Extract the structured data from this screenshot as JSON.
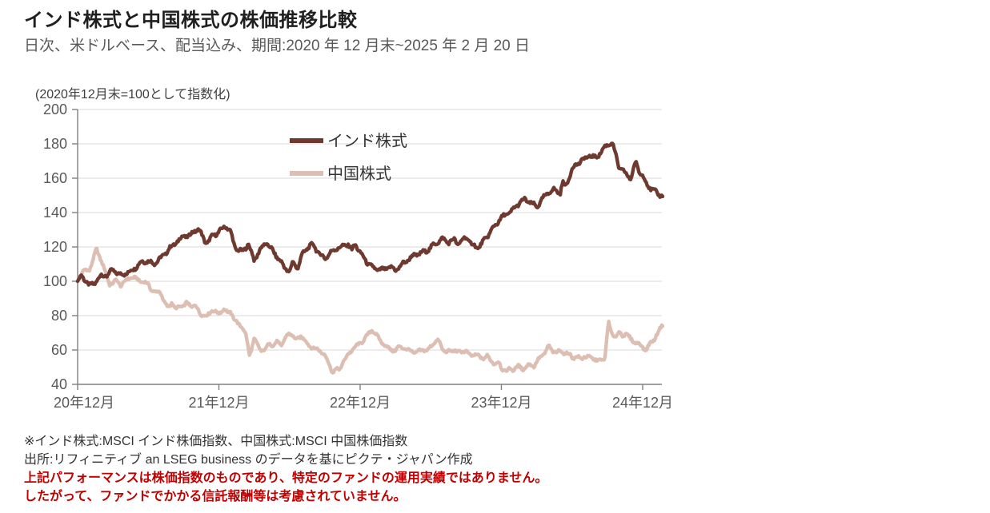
{
  "title": "インド株式と中国株式の株価推移比較",
  "subtitle": "日次、米ドルベース、配当込み、期間:2020 年 12 月末~2025 年 2 月 20 日",
  "chart_data": {
    "type": "line",
    "unit_label": "(2020年12月末=100として指数化)",
    "x_unit": "months_since_2020-12-31",
    "x_axis": {
      "tick_labels": [
        "20年12月",
        "21年12月",
        "22年12月",
        "23年12月",
        "24年12月"
      ],
      "tick_months": [
        0,
        12,
        24,
        36,
        48
      ],
      "range_months": [
        0,
        49.7
      ]
    },
    "y_axis": {
      "min": 40,
      "max": 200,
      "step": 20,
      "tick_labels": [
        "200",
        "180",
        "160",
        "140",
        "120",
        "100",
        "80",
        "60",
        "40"
      ]
    },
    "grid": true,
    "grid_color": "#d9d9d9",
    "axis_color": "#808080",
    "legend_position": "top-inside",
    "series": [
      {
        "name": "インド株式",
        "color": "#6E3A30",
        "points": [
          [
            0,
            100
          ],
          [
            0.3,
            103
          ],
          [
            1,
            97
          ],
          [
            1.5,
            100
          ],
          [
            2,
            104
          ],
          [
            2.5,
            103
          ],
          [
            3,
            106
          ],
          [
            3.5,
            104
          ],
          [
            4,
            105
          ],
          [
            4.5,
            106
          ],
          [
            5,
            108
          ],
          [
            5.5,
            111
          ],
          [
            6,
            112
          ],
          [
            6.5,
            111
          ],
          [
            7,
            113
          ],
          [
            7.5,
            116
          ],
          [
            8,
            120
          ],
          [
            8.5,
            124
          ],
          [
            9,
            127
          ],
          [
            9.5,
            126
          ],
          [
            10,
            129
          ],
          [
            10.3,
            130
          ],
          [
            10.8,
            124
          ],
          [
            11,
            123
          ],
          [
            11.5,
            127
          ],
          [
            12,
            128
          ],
          [
            12.6,
            132
          ],
          [
            13,
            129
          ],
          [
            13.4,
            120
          ],
          [
            14,
            117
          ],
          [
            14.5,
            121
          ],
          [
            15,
            112
          ],
          [
            15.5,
            119
          ],
          [
            16,
            123
          ],
          [
            16.5,
            118
          ],
          [
            17,
            113
          ],
          [
            17.5,
            109
          ],
          [
            18,
            106
          ],
          [
            18.3,
            112
          ],
          [
            18.7,
            107
          ],
          [
            19,
            114
          ],
          [
            19.5,
            119
          ],
          [
            20,
            122
          ],
          [
            20.5,
            117
          ],
          [
            21,
            113
          ],
          [
            21.5,
            116
          ],
          [
            22,
            119
          ],
          [
            22.5,
            121
          ],
          [
            23,
            122
          ],
          [
            23.3,
            118
          ],
          [
            23.6,
            121
          ],
          [
            24,
            116
          ],
          [
            24.5,
            112
          ],
          [
            25,
            109
          ],
          [
            25.5,
            107
          ],
          [
            26,
            106
          ],
          [
            26.5,
            108
          ],
          [
            27,
            107
          ],
          [
            27.5,
            110
          ],
          [
            28,
            112
          ],
          [
            28.5,
            114
          ],
          [
            29,
            116
          ],
          [
            29.5,
            118
          ],
          [
            30,
            120
          ],
          [
            30.5,
            122
          ],
          [
            31,
            124
          ],
          [
            31.5,
            123
          ],
          [
            32,
            125
          ],
          [
            32.3,
            122
          ],
          [
            33,
            125
          ],
          [
            33.5,
            121
          ],
          [
            34,
            120
          ],
          [
            34.5,
            124
          ],
          [
            35,
            128
          ],
          [
            35.5,
            132
          ],
          [
            36,
            137
          ],
          [
            36.5,
            140
          ],
          [
            37,
            142
          ],
          [
            37.5,
            145
          ],
          [
            38,
            147
          ],
          [
            38.5,
            146
          ],
          [
            39,
            144
          ],
          [
            39.5,
            148
          ],
          [
            40,
            151
          ],
          [
            40.5,
            153
          ],
          [
            41,
            152
          ],
          [
            41.2,
            158
          ],
          [
            41.5,
            156
          ],
          [
            42,
            165
          ],
          [
            42.5,
            168
          ],
          [
            43,
            171
          ],
          [
            43.5,
            174
          ],
          [
            44,
            172
          ],
          [
            44.5,
            175
          ],
          [
            45,
            179
          ],
          [
            45.4,
            181
          ],
          [
            45.8,
            172
          ],
          [
            46,
            167
          ],
          [
            46.5,
            163
          ],
          [
            47,
            159
          ],
          [
            47.4,
            169
          ],
          [
            47.8,
            163
          ],
          [
            48,
            162
          ],
          [
            48.3,
            158
          ],
          [
            48.7,
            154
          ],
          [
            49,
            152
          ],
          [
            49.4,
            150
          ],
          [
            49.7,
            149
          ]
        ]
      },
      {
        "name": "中国株式",
        "color": "#DCBEB2",
        "points": [
          [
            0,
            100
          ],
          [
            0.5,
            106
          ],
          [
            1,
            107
          ],
          [
            1.3,
            113
          ],
          [
            1.6,
            119
          ],
          [
            2,
            112
          ],
          [
            2.3,
            106
          ],
          [
            2.7,
            98
          ],
          [
            3,
            99
          ],
          [
            3.3,
            101
          ],
          [
            3.7,
            98
          ],
          [
            4,
            100
          ],
          [
            4.5,
            102
          ],
          [
            5,
            101
          ],
          [
            5.5,
            100
          ],
          [
            6,
            99
          ],
          [
            6.3,
            95
          ],
          [
            6.6,
            93
          ],
          [
            7,
            94
          ],
          [
            7.3,
            88
          ],
          [
            7.6,
            85
          ],
          [
            8,
            88
          ],
          [
            8.3,
            84
          ],
          [
            8.7,
            86
          ],
          [
            9,
            85
          ],
          [
            9.3,
            87
          ],
          [
            9.7,
            85
          ],
          [
            10,
            86
          ],
          [
            10.4,
            82
          ],
          [
            10.8,
            80
          ],
          [
            11,
            80
          ],
          [
            11.4,
            83
          ],
          [
            11.8,
            81
          ],
          [
            12,
            81
          ],
          [
            12.4,
            84
          ],
          [
            12.8,
            82
          ],
          [
            13,
            83
          ],
          [
            13.3,
            78
          ],
          [
            13.6,
            75
          ],
          [
            14,
            73
          ],
          [
            14.3,
            68
          ],
          [
            14.6,
            57
          ],
          [
            14.8,
            62
          ],
          [
            15,
            67
          ],
          [
            15.3,
            63
          ],
          [
            15.6,
            60
          ],
          [
            16,
            60
          ],
          [
            16.3,
            64
          ],
          [
            16.6,
            62
          ],
          [
            17,
            65
          ],
          [
            17.3,
            63
          ],
          [
            17.6,
            67
          ],
          [
            18,
            70
          ],
          [
            18.3,
            68
          ],
          [
            18.6,
            65
          ],
          [
            19,
            68
          ],
          [
            19.3,
            66
          ],
          [
            19.6,
            63
          ],
          [
            20,
            62
          ],
          [
            20.4,
            60
          ],
          [
            20.8,
            58
          ],
          [
            21,
            57
          ],
          [
            21.3,
            52
          ],
          [
            21.7,
            47
          ],
          [
            22,
            50
          ],
          [
            22.2,
            48
          ],
          [
            22.5,
            53
          ],
          [
            23,
            57
          ],
          [
            23.5,
            61
          ],
          [
            24,
            64
          ],
          [
            24.5,
            68
          ],
          [
            25,
            72
          ],
          [
            25.3,
            69
          ],
          [
            25.6,
            66
          ],
          [
            26,
            63
          ],
          [
            26.5,
            61
          ],
          [
            27,
            60
          ],
          [
            27.3,
            62
          ],
          [
            27.7,
            61
          ],
          [
            28,
            59
          ],
          [
            28.3,
            60
          ],
          [
            28.7,
            58
          ],
          [
            29,
            60
          ],
          [
            29.3,
            61
          ],
          [
            29.7,
            59
          ],
          [
            30,
            62
          ],
          [
            30.3,
            64
          ],
          [
            30.7,
            65
          ],
          [
            31,
            61
          ],
          [
            31.3,
            59
          ],
          [
            31.7,
            60
          ],
          [
            32,
            60
          ],
          [
            32.3,
            58
          ],
          [
            32.7,
            59
          ],
          [
            33,
            59
          ],
          [
            33.3,
            57
          ],
          [
            33.7,
            58
          ],
          [
            34,
            57
          ],
          [
            34.4,
            55
          ],
          [
            34.8,
            56
          ],
          [
            35,
            54
          ],
          [
            35.4,
            52
          ],
          [
            35.8,
            53
          ],
          [
            36,
            50
          ],
          [
            36.4,
            48
          ],
          [
            36.8,
            49
          ],
          [
            37,
            48
          ],
          [
            37.4,
            50
          ],
          [
            37.8,
            49
          ],
          [
            38,
            50
          ],
          [
            38.4,
            52
          ],
          [
            38.8,
            51
          ],
          [
            39,
            53
          ],
          [
            39.4,
            56
          ],
          [
            39.7,
            58
          ],
          [
            40,
            62
          ],
          [
            40.3,
            60
          ],
          [
            40.7,
            59
          ],
          [
            41,
            60
          ],
          [
            41.4,
            58
          ],
          [
            41.8,
            57
          ],
          [
            42,
            55
          ],
          [
            42.4,
            56
          ],
          [
            42.8,
            55
          ],
          [
            43,
            57
          ],
          [
            43.4,
            56
          ],
          [
            43.8,
            55
          ],
          [
            44,
            54
          ],
          [
            44.3,
            53
          ],
          [
            44.6,
            54
          ],
          [
            44.8,
            56
          ],
          [
            45,
            70
          ],
          [
            45.1,
            77
          ],
          [
            45.3,
            71
          ],
          [
            45.6,
            68
          ],
          [
            46,
            70
          ],
          [
            46.3,
            68
          ],
          [
            46.6,
            69
          ],
          [
            47,
            66
          ],
          [
            47.3,
            65
          ],
          [
            47.7,
            64
          ],
          [
            48,
            62
          ],
          [
            48.3,
            60
          ],
          [
            48.6,
            63
          ],
          [
            49,
            66
          ],
          [
            49.3,
            70
          ],
          [
            49.7,
            75
          ]
        ]
      }
    ]
  },
  "footnotes": {
    "note1": "※インド株式:MSCI インド株価指数、中国株式:MSCI 中国株価指数",
    "note2": "出所:リフィニティブ  an LSEG business のデータを基にピクテ・ジャパン作成",
    "warning1": "上記パフォーマンスは株価指数のものであり、特定のファンドの運用実績ではありません。",
    "warning2": "したがって、ファンドでかかる信託報酬等は考慮されていません。",
    "warning_color": "#C00000"
  }
}
